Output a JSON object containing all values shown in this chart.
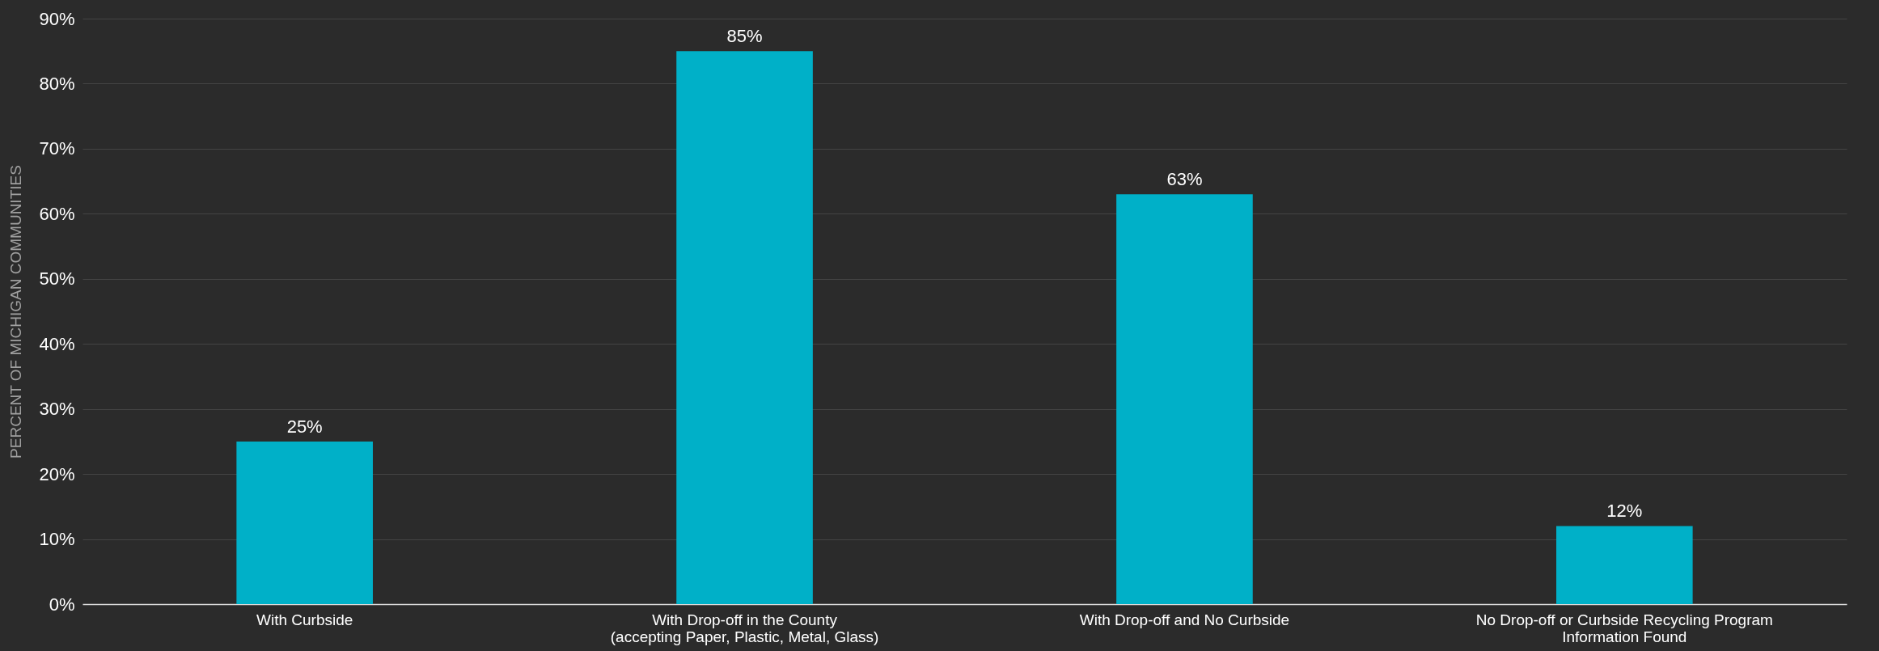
{
  "chart_data": {
    "type": "bar",
    "categories": [
      "With Curbside",
      "With Drop-off in the County\n(accepting Paper, Plastic, Metal, Glass)",
      "With Drop-off and No Curbside",
      "No Drop-off or Curbside Recycling Program\nInformation Found"
    ],
    "values": [
      25,
      85,
      63,
      12
    ],
    "value_labels": [
      "25%",
      "85%",
      "63%",
      "12%"
    ],
    "color": "#00b0c8",
    "ylabel": "PERCENT OF MICHIGAN COMMUNITIES",
    "ylim": [
      0,
      90
    ],
    "yticks": [
      {
        "value": 0,
        "label": "0%"
      },
      {
        "value": 10,
        "label": "10%"
      },
      {
        "value": 20,
        "label": "20%"
      },
      {
        "value": 30,
        "label": "30%"
      },
      {
        "value": 40,
        "label": "40%"
      },
      {
        "value": 50,
        "label": "50%"
      },
      {
        "value": 60,
        "label": "60%"
      },
      {
        "value": 70,
        "label": "70%"
      },
      {
        "value": 80,
        "label": "80%"
      },
      {
        "value": 90,
        "label": "90%"
      }
    ],
    "grid": "y"
  }
}
